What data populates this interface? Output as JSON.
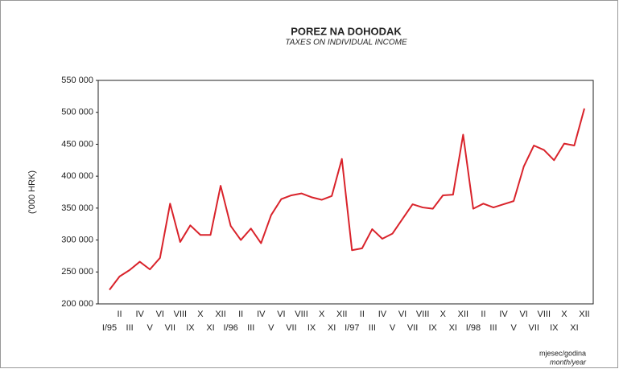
{
  "chart_data": {
    "type": "line",
    "title": "POREZ NA DOHODAK",
    "subtitle": "TAXES ON INDIVIDUAL INCOME",
    "ylabel": "('000 HRK)",
    "xlabel": "mjesec/godina",
    "xlabel_en": "month/year",
    "categories": [
      "I/95",
      "II",
      "III",
      "IV",
      "V",
      "VI",
      "VII",
      "VIII",
      "IX",
      "X",
      "XI",
      "XII",
      "I/96",
      "II",
      "III",
      "IV",
      "V",
      "VI",
      "VII",
      "VIII",
      "IX",
      "X",
      "XI",
      "XII",
      "I/97",
      "II",
      "III",
      "IV",
      "V",
      "VI",
      "VII",
      "VIII",
      "IX",
      "X",
      "XI",
      "XII",
      "I/98",
      "II",
      "III",
      "IV",
      "V",
      "VI",
      "VII",
      "VIII",
      "IX",
      "X",
      "XI",
      "XII"
    ],
    "series": [
      {
        "name": "Porez na dohodak",
        "color": "#d9232b",
        "values": [
          222000,
          243000,
          253000,
          266000,
          254000,
          272000,
          357000,
          297000,
          323000,
          308000,
          308000,
          385000,
          322000,
          300000,
          318000,
          295000,
          339000,
          364000,
          370000,
          373000,
          367000,
          363000,
          369000,
          427000,
          284000,
          287000,
          317000,
          302000,
          310000,
          333000,
          356000,
          351000,
          349000,
          370000,
          371000,
          465000,
          349000,
          357000,
          351000,
          356000,
          361000,
          415000,
          448000,
          441000,
          425000,
          451000,
          448000,
          506000
        ]
      }
    ],
    "ylim": [
      200000,
      550000
    ],
    "yticks": [
      {
        "value": 200000,
        "label": "200 000"
      },
      {
        "value": 250000,
        "label": "250 000"
      },
      {
        "value": 300000,
        "label": "300 000"
      },
      {
        "value": 350000,
        "label": "350 000"
      },
      {
        "value": 400000,
        "label": "400 000"
      },
      {
        "value": 450000,
        "label": "450 000"
      },
      {
        "value": 500000,
        "label": "500 000"
      },
      {
        "value": 550000,
        "label": "550 000"
      }
    ]
  }
}
